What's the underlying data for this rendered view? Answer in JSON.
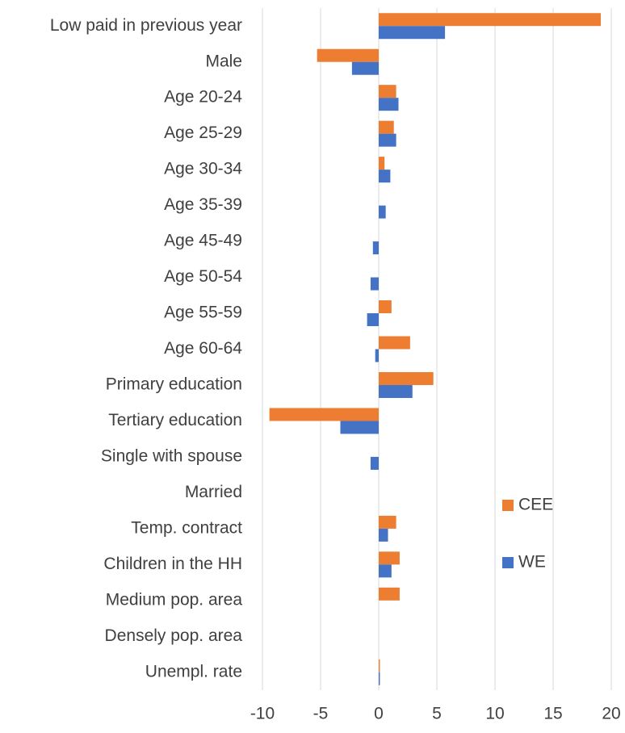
{
  "chart_data": {
    "type": "hbar",
    "categories": [
      "Low paid in previous year",
      "Male",
      "Age 20-24",
      "Age 25-29",
      "Age 30-34",
      "Age 35-39",
      "Age 45-49",
      "Age 50-54",
      "Age 55-59",
      "Age 60-64",
      "Primary education",
      "Tertiary education",
      "Single with spouse",
      "Married",
      "Temp. contract",
      "Children in the HH",
      "Medium pop. area",
      "Densely pop. area",
      "Unempl. rate"
    ],
    "series": [
      {
        "name": "CEE",
        "color": "#ed7d31",
        "values": [
          19.1,
          -5.3,
          1.5,
          1.3,
          0.5,
          null,
          null,
          null,
          1.1,
          2.7,
          4.7,
          -9.4,
          null,
          null,
          1.5,
          1.8,
          1.8,
          null,
          0.1
        ]
      },
      {
        "name": "WE",
        "color": "#4472c4",
        "values": [
          5.7,
          -2.3,
          1.7,
          1.5,
          1.0,
          0.6,
          -0.5,
          -0.7,
          -1.0,
          -0.3,
          2.9,
          -3.3,
          -0.7,
          null,
          0.8,
          1.1,
          null,
          null,
          0.1
        ]
      }
    ],
    "xlim": [
      -10,
      20
    ],
    "xticks": [
      -10,
      -5,
      0,
      5,
      10,
      15,
      20
    ],
    "grid": true,
    "legend": "right"
  }
}
